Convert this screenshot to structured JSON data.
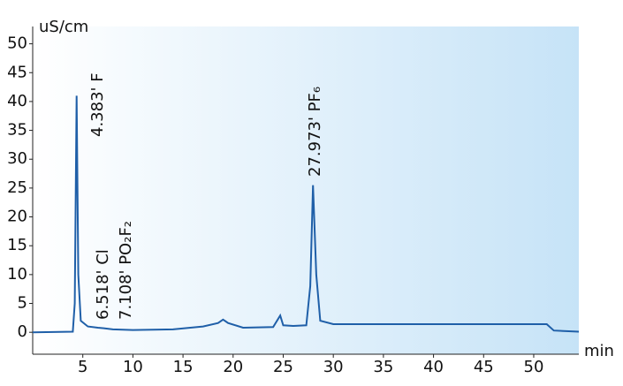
{
  "chart_data": {
    "type": "line",
    "y_label": "uS/cm",
    "x_label": "min",
    "series": [
      {
        "color": "#1f5fa8",
        "x": [
          0,
          4.0,
          4.2,
          4.383,
          4.55,
          4.8,
          5.5,
          6.5,
          7.1,
          8,
          10,
          14,
          17,
          18.5,
          19,
          19.5,
          21,
          24,
          24.7,
          25,
          26,
          27.3,
          27.7,
          27.973,
          28.3,
          28.7,
          30,
          40,
          50,
          51.3,
          52,
          54.5
        ],
        "values": [
          0,
          0.1,
          5,
          41,
          10,
          2,
          1,
          0.8,
          0.7,
          0.5,
          0.4,
          0.5,
          1,
          1.6,
          2.2,
          1.6,
          0.8,
          0.9,
          2.9,
          1.2,
          1.1,
          1.2,
          8,
          25.5,
          10,
          2,
          1.4,
          1.4,
          1.4,
          1.4,
          0.3,
          0.1
        ]
      }
    ],
    "annotations": [
      "4.383' F",
      "6.518' Cl",
      "7.108' PO₂F₂",
      "27.973' PF₆"
    ],
    "xlim": [
      0,
      54.5
    ],
    "ylim": [
      -3.8,
      53
    ],
    "xticks": [
      5,
      10,
      15,
      20,
      25,
      30,
      35,
      40,
      45,
      50
    ],
    "yticks": [
      0,
      5,
      10,
      15,
      20,
      25,
      30,
      35,
      40,
      45,
      50
    ]
  }
}
